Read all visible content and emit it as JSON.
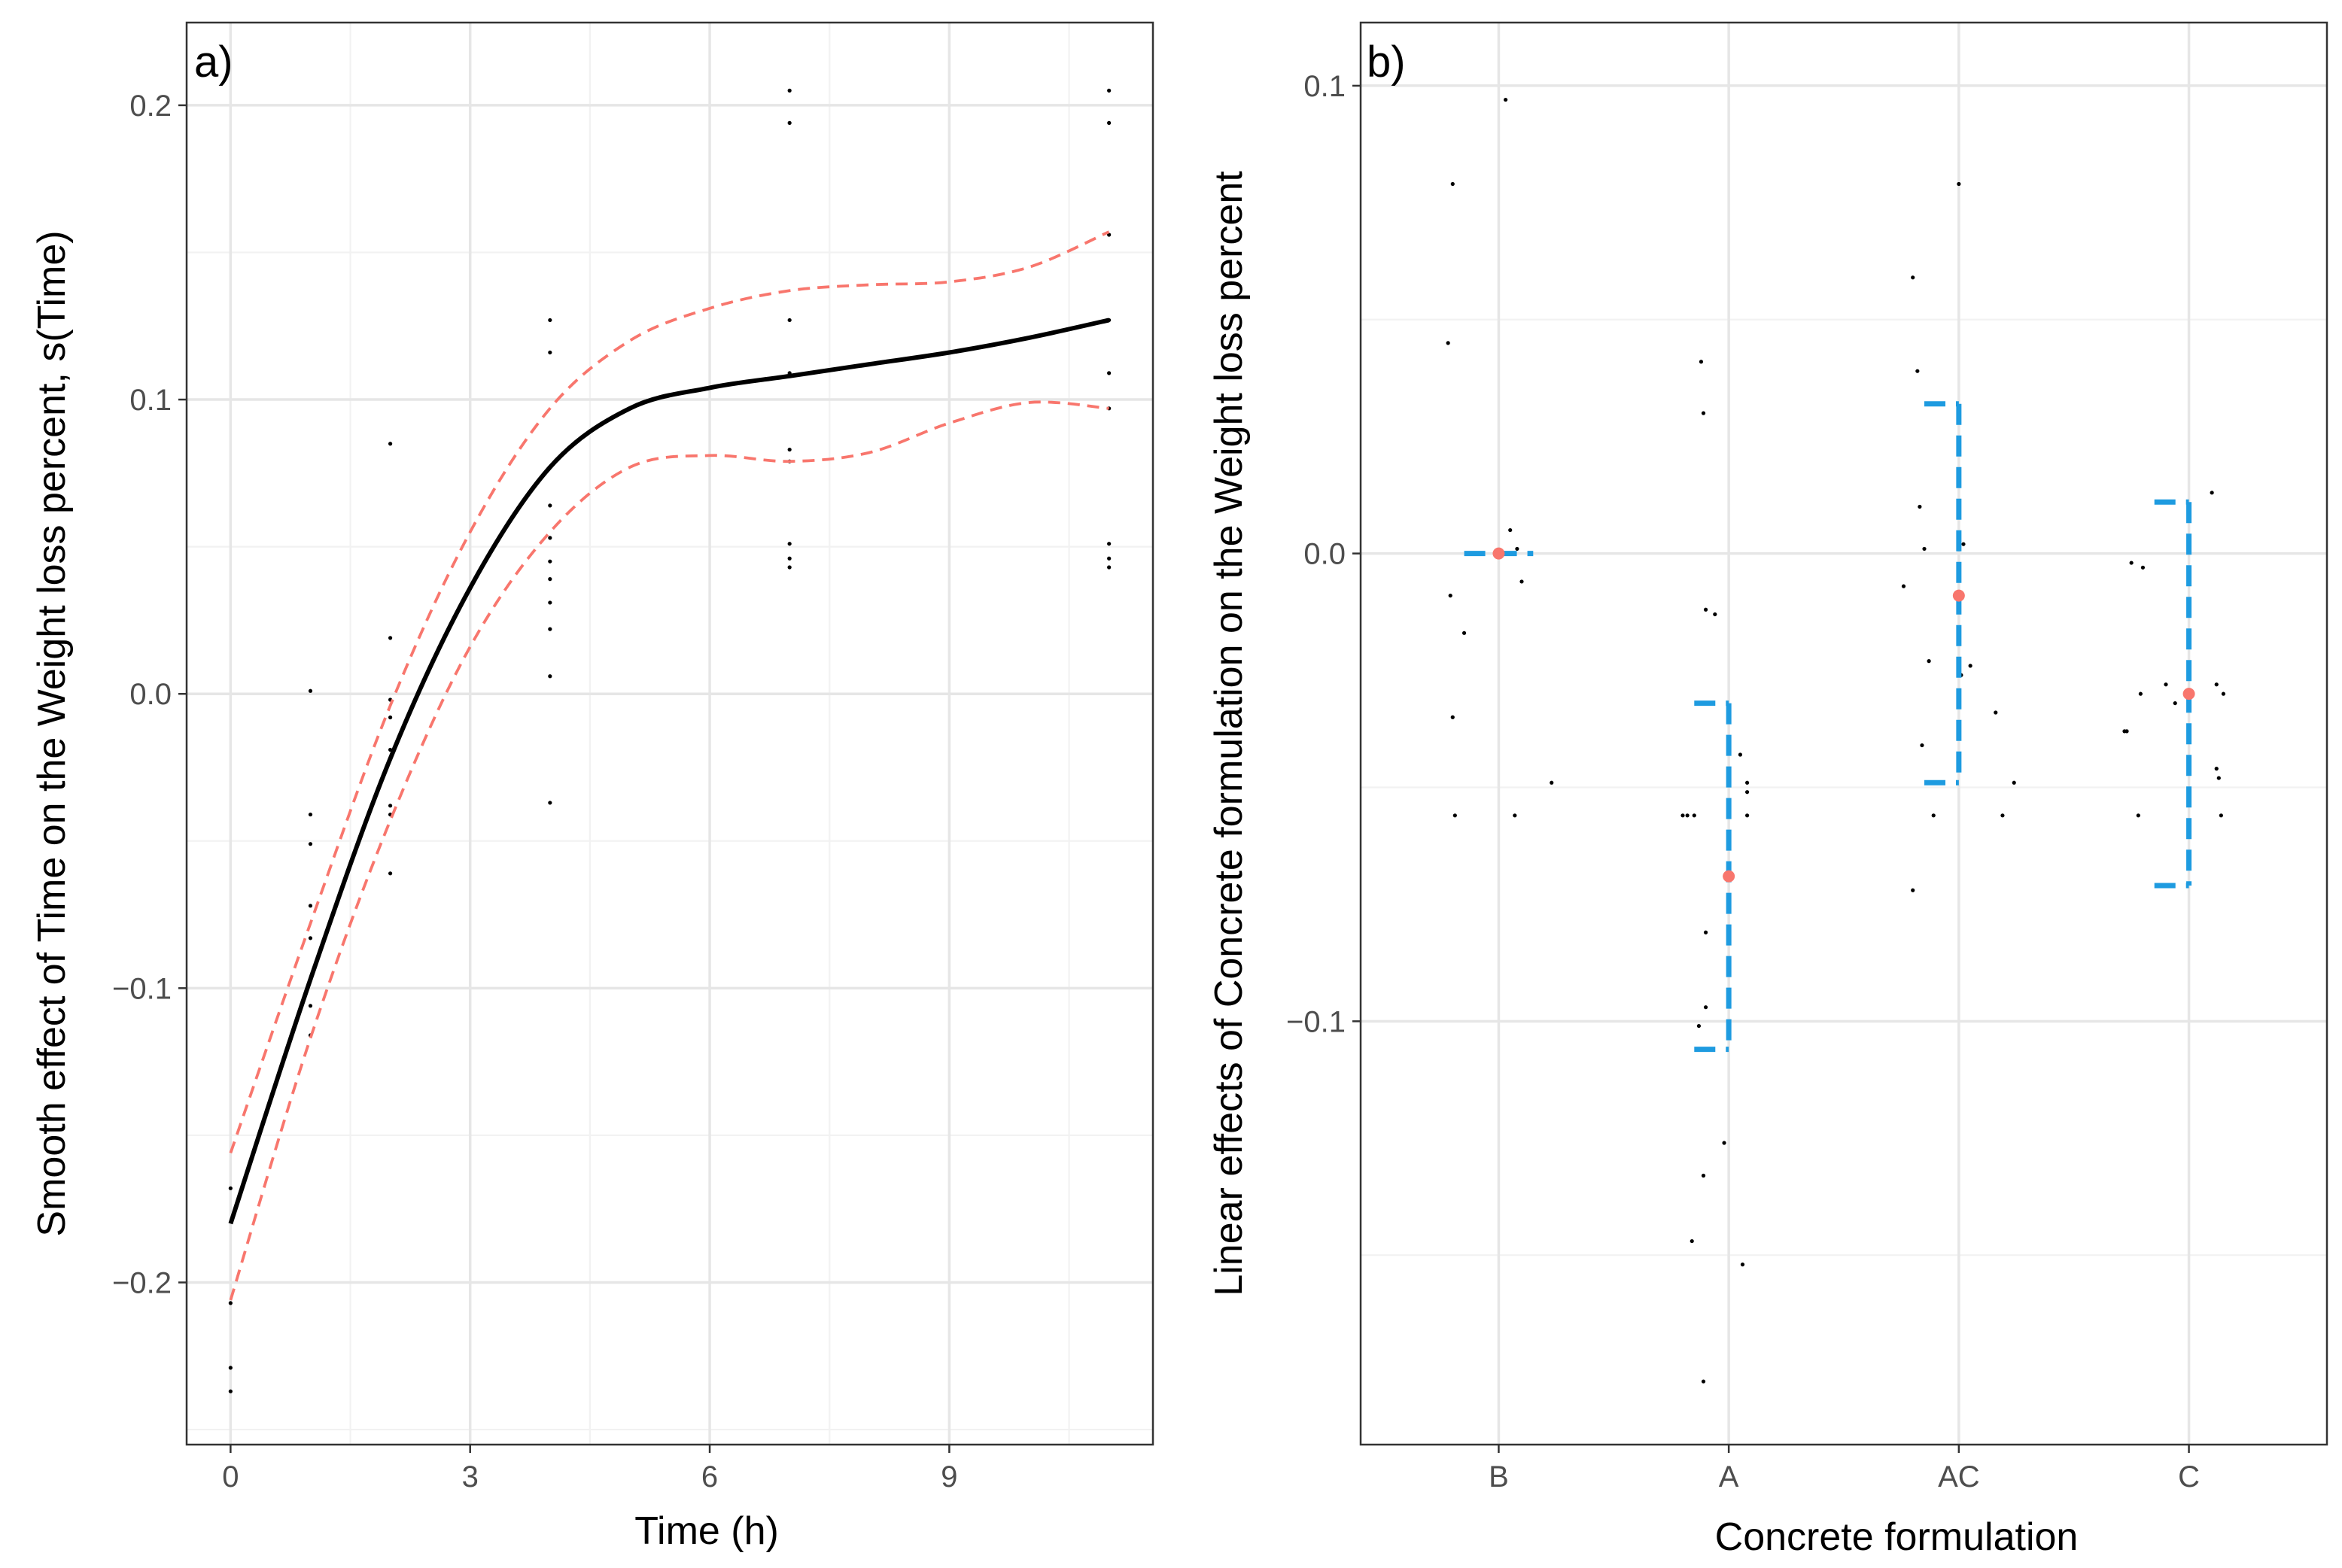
{
  "chart_data": [
    {
      "type": "line",
      "panel_label": "a)",
      "xlabel": "Time (h)",
      "ylabel": "Smooth effect of Time on the Weight loss percent, s(Time)",
      "xlim": [
        -0.55,
        11.55
      ],
      "ylim": [
        -0.2551,
        0.2281
      ],
      "x_ticks": [
        0,
        3,
        6,
        9
      ],
      "x_tick_labels": [
        "0",
        "3",
        "6",
        "9"
      ],
      "y_ticks": [
        -0.2,
        -0.1,
        0.0,
        0.1,
        0.2
      ],
      "y_tick_labels": [
        "−0.2",
        "−0.1",
        "0.0",
        "0.1",
        "0.2"
      ],
      "x_minor_ticks": [
        1.5,
        4.5,
        7.5,
        10.5
      ],
      "y_minor_ticks": [
        -0.25,
        -0.15,
        -0.05,
        0.05,
        0.15
      ],
      "grid": true,
      "colors": {
        "fit": "#000000",
        "ci": "#f8766d",
        "points": "#000000"
      },
      "series": [
        {
          "name": "fit",
          "style": "solid",
          "x": [
            0,
            1,
            2,
            3,
            4,
            5,
            6,
            7,
            8,
            9,
            10,
            11
          ],
          "y": [
            -0.18,
            -0.097,
            -0.022,
            0.036,
            0.077,
            0.097,
            0.104,
            0.108,
            0.112,
            0.116,
            0.121,
            0.127
          ]
        },
        {
          "name": "upper_ci",
          "style": "dashed",
          "x": [
            0,
            1,
            2,
            3,
            4,
            5,
            6,
            7,
            8,
            9,
            10,
            11
          ],
          "y": [
            -0.156,
            -0.078,
            -0.004,
            0.055,
            0.097,
            0.12,
            0.131,
            0.137,
            0.139,
            0.14,
            0.145,
            0.157
          ]
        },
        {
          "name": "lower_ci",
          "style": "dashed",
          "x": [
            0,
            1,
            2,
            3,
            4,
            5,
            6,
            7,
            8,
            9,
            10,
            11
          ],
          "y": [
            -0.206,
            -0.117,
            -0.043,
            0.016,
            0.055,
            0.077,
            0.081,
            0.079,
            0.082,
            0.092,
            0.099,
            0.097
          ]
        },
        {
          "name": "partial_residuals",
          "style": "points",
          "x": [
            0,
            0,
            0,
            0,
            1,
            1,
            1,
            1,
            1,
            1,
            1,
            2,
            2,
            2,
            2,
            2,
            2,
            2,
            2,
            4,
            4,
            4,
            4,
            4,
            4,
            4,
            4,
            4,
            4,
            7,
            7,
            7,
            7,
            7,
            7,
            7,
            7,
            7,
            11,
            11,
            11,
            11,
            11,
            11,
            11,
            11,
            11
          ],
          "y": [
            -0.168,
            -0.207,
            -0.229,
            -0.237,
            0.001,
            -0.041,
            -0.051,
            -0.072,
            -0.083,
            -0.106,
            -0.116,
            0.085,
            0.019,
            -0.002,
            -0.008,
            -0.019,
            -0.038,
            -0.041,
            -0.061,
            0.127,
            0.116,
            0.064,
            0.053,
            0.045,
            0.039,
            0.031,
            0.022,
            0.006,
            -0.037,
            0.205,
            0.194,
            0.127,
            0.109,
            0.083,
            0.079,
            0.051,
            0.046,
            0.043,
            0.205,
            0.194,
            0.156,
            0.127,
            0.109,
            0.097,
            0.051,
            0.046,
            0.043
          ]
        }
      ]
    },
    {
      "type": "scatter",
      "panel_label": "b)",
      "xlabel": "Concrete formulation",
      "ylabel": "Linear effects of Concrete formulation on the Weight loss percent",
      "categories": [
        "B",
        "A",
        "AC",
        "C"
      ],
      "ylim": [
        -0.1905,
        0.1135
      ],
      "y_ticks": [
        -0.1,
        0.0,
        0.1
      ],
      "y_tick_labels": [
        "−0.1",
        "0.0",
        "0.1"
      ],
      "y_minor_ticks": [
        -0.15,
        -0.05,
        0.05
      ],
      "grid": true,
      "colors": {
        "estimate": "#f8766d",
        "interval": "#1e9be0",
        "points": "#000000"
      },
      "estimates": [
        {
          "category": "B",
          "value": 0.0,
          "lower": 0.0,
          "upper": 0.0
        },
        {
          "category": "A",
          "value": -0.069,
          "lower": -0.106,
          "upper": -0.032
        },
        {
          "category": "AC",
          "value": -0.009,
          "lower": -0.049,
          "upper": 0.032
        },
        {
          "category": "C",
          "value": -0.03,
          "lower": -0.071,
          "upper": 0.011
        }
      ],
      "partial_residuals": [
        {
          "category": "B",
          "offset": [
            -0.2,
            -0.22,
            -0.21,
            -0.15,
            -0.2,
            -0.19,
            0.05,
            0.08,
            0.1,
            0.03,
            0.23,
            0.07
          ],
          "y": [
            0.079,
            0.045,
            -0.009,
            -0.017,
            -0.035,
            -0.056,
            0.005,
            0.001,
            -0.006,
            0.097,
            -0.049,
            -0.056
          ]
        },
        {
          "category": "A",
          "offset": [
            -0.12,
            -0.11,
            -0.1,
            -0.06,
            -0.2,
            -0.18,
            -0.15,
            -0.1,
            -0.1,
            -0.11,
            -0.16,
            -0.11,
            0.05,
            0.08,
            0.08,
            0.08,
            0.0,
            -0.02,
            -0.13,
            0.06
          ],
          "y": [
            0.041,
            0.03,
            -0.012,
            -0.013,
            -0.056,
            -0.056,
            -0.056,
            -0.081,
            -0.097,
            -0.133,
            -0.147,
            -0.177,
            -0.043,
            -0.049,
            -0.051,
            -0.056,
            -0.069,
            -0.126,
            -0.101,
            -0.152
          ]
        },
        {
          "category": "AC",
          "offset": [
            -0.2,
            -0.18,
            -0.17,
            -0.24,
            -0.13,
            -0.16,
            -0.11,
            -0.2,
            0.0,
            0.02,
            0.01,
            0.05,
            0.16,
            0.19,
            0.24,
            -0.15
          ],
          "y": [
            0.059,
            0.039,
            0.01,
            -0.007,
            -0.023,
            -0.041,
            -0.056,
            -0.072,
            0.079,
            0.002,
            -0.026,
            -0.024,
            -0.034,
            -0.056,
            -0.049,
            0.001
          ]
        },
        {
          "category": "C",
          "offset": [
            -0.25,
            -0.28,
            -0.27,
            -0.2,
            -0.1,
            -0.06,
            -0.22,
            -0.21,
            0.1,
            0.12,
            0.13,
            0.12,
            0.14,
            0.15
          ],
          "y": [
            -0.002,
            -0.038,
            -0.038,
            -0.003,
            -0.028,
            -0.032,
            -0.056,
            -0.03,
            0.013,
            -0.028,
            -0.048,
            -0.046,
            -0.056,
            -0.03
          ]
        }
      ]
    }
  ]
}
